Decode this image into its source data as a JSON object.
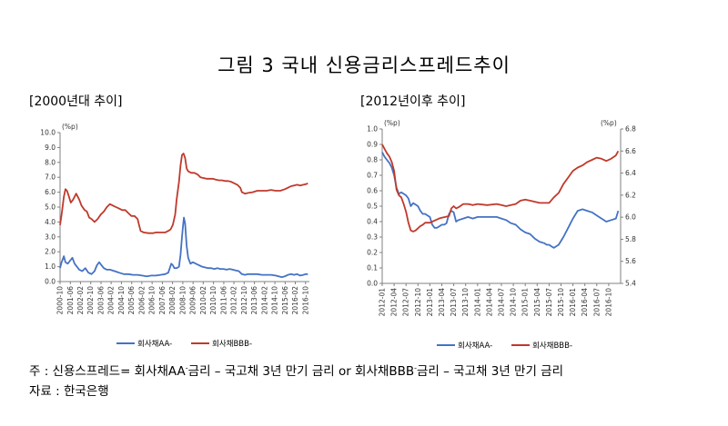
{
  "title": "그림 3 국내 신용금리스프레드추이",
  "colors": {
    "aa": "#4472c4",
    "bbb": "#c0392b",
    "axis": "#808080"
  },
  "footnote": {
    "prefix": "주 : 신용스프레드= 회사채AA",
    "sup1": "-",
    "mid": "금리 – 국고채 3년 만기 금리 or 회사채BBB",
    "sup2": "-",
    "suffix": "금리 – 국고채 3년 만기 금리"
  },
  "source": "자료 : 한국은행",
  "chart_data": [
    {
      "type": "line",
      "title": "[2000년대 추이]",
      "ylabel": "(%p)",
      "ylim": [
        0,
        10
      ],
      "yticks": [
        "0.0",
        "1.0",
        "2.0",
        "3.0",
        "4.0",
        "5.0",
        "6.0",
        "7.0",
        "8.0",
        "9.0",
        "10.0"
      ],
      "x_range": [
        2000.75,
        2017.0
      ],
      "xticks": [
        {
          "label": "2000-10",
          "x": 2000.75
        },
        {
          "label": "2001-06",
          "x": 2001.42
        },
        {
          "label": "2002-02",
          "x": 2002.08
        },
        {
          "label": "2002-10",
          "x": 2002.75
        },
        {
          "label": "2003-06",
          "x": 2003.42
        },
        {
          "label": "2004-02",
          "x": 2004.08
        },
        {
          "label": "2004-10",
          "x": 2004.75
        },
        {
          "label": "2005-06",
          "x": 2005.42
        },
        {
          "label": "2006-02",
          "x": 2006.08
        },
        {
          "label": "2006-10",
          "x": 2006.75
        },
        {
          "label": "2007-06",
          "x": 2007.42
        },
        {
          "label": "2008-02",
          "x": 2008.08
        },
        {
          "label": "2008-10",
          "x": 2008.75
        },
        {
          "label": "2009-06",
          "x": 2009.42
        },
        {
          "label": "2010-02",
          "x": 2010.08
        },
        {
          "label": "2010-10",
          "x": 2010.75
        },
        {
          "label": "2011-06",
          "x": 2011.42
        },
        {
          "label": "2012-02",
          "x": 2012.08
        },
        {
          "label": "2012-10",
          "x": 2012.75
        },
        {
          "label": "2013-06",
          "x": 2013.42
        },
        {
          "label": "2014-02",
          "x": 2014.08
        },
        {
          "label": "2014-10",
          "x": 2014.75
        },
        {
          "label": "2015-06",
          "x": 2015.42
        },
        {
          "label": "2016-02",
          "x": 2016.08
        },
        {
          "label": "2016-10",
          "x": 2016.75
        }
      ],
      "series": [
        {
          "name": "회사채AA-",
          "color_key": "aa",
          "x": [
            2000.75,
            2000.85,
            2001.0,
            2001.1,
            2001.25,
            2001.4,
            2001.55,
            2001.7,
            2001.85,
            2002.0,
            2002.2,
            2002.4,
            2002.6,
            2002.8,
            2003.0,
            2003.15,
            2003.3,
            2003.45,
            2003.6,
            2003.8,
            2004.0,
            2004.3,
            2004.6,
            2004.9,
            2005.2,
            2005.5,
            2005.8,
            2006.1,
            2006.4,
            2006.7,
            2007.0,
            2007.3,
            2007.6,
            2007.8,
            2007.9,
            2008.0,
            2008.1,
            2008.2,
            2008.35,
            2008.5,
            2008.6,
            2008.7,
            2008.75,
            2008.82,
            2008.9,
            2009.0,
            2009.1,
            2009.25,
            2009.4,
            2009.6,
            2009.8,
            2010.0,
            2010.2,
            2010.4,
            2010.6,
            2010.8,
            2011.0,
            2011.2,
            2011.4,
            2011.6,
            2011.8,
            2012.0,
            2012.2,
            2012.4,
            2012.6,
            2012.8,
            2013.0,
            2013.3,
            2013.6,
            2013.9,
            2014.2,
            2014.5,
            2014.8,
            2015.0,
            2015.2,
            2015.4,
            2015.6,
            2015.8,
            2016.0,
            2016.2,
            2016.4,
            2016.6,
            2016.75,
            2016.9
          ],
          "values": [
            0.9,
            1.3,
            1.7,
            1.3,
            1.2,
            1.4,
            1.6,
            1.2,
            1.0,
            0.8,
            0.7,
            0.9,
            0.6,
            0.5,
            0.7,
            1.1,
            1.3,
            1.1,
            0.9,
            0.8,
            0.8,
            0.7,
            0.6,
            0.5,
            0.5,
            0.45,
            0.45,
            0.4,
            0.35,
            0.4,
            0.4,
            0.45,
            0.5,
            0.6,
            0.9,
            1.2,
            1.1,
            0.9,
            0.9,
            1.0,
            1.8,
            3.0,
            3.6,
            4.3,
            3.9,
            2.4,
            1.6,
            1.2,
            1.3,
            1.2,
            1.1,
            1.0,
            0.95,
            0.9,
            0.9,
            0.85,
            0.9,
            0.85,
            0.85,
            0.8,
            0.85,
            0.8,
            0.75,
            0.7,
            0.5,
            0.45,
            0.5,
            0.5,
            0.5,
            0.45,
            0.45,
            0.45,
            0.4,
            0.35,
            0.3,
            0.35,
            0.45,
            0.5,
            0.45,
            0.5,
            0.4,
            0.45,
            0.5,
            0.5
          ]
        },
        {
          "name": "회사채BBB-",
          "color_key": "bbb",
          "x": [
            2000.75,
            2000.85,
            2001.0,
            2001.1,
            2001.2,
            2001.3,
            2001.45,
            2001.6,
            2001.8,
            2002.0,
            2002.15,
            2002.35,
            2002.5,
            2002.65,
            2002.8,
            2003.0,
            2003.2,
            2003.4,
            2003.6,
            2003.8,
            2004.0,
            2004.2,
            2004.4,
            2004.6,
            2004.8,
            2005.0,
            2005.2,
            2005.4,
            2005.6,
            2005.8,
            2005.9,
            2006.0,
            2006.2,
            2006.5,
            2006.8,
            2007.0,
            2007.3,
            2007.6,
            2007.8,
            2007.95,
            2008.1,
            2008.25,
            2008.35,
            2008.5,
            2008.6,
            2008.7,
            2008.8,
            2008.9,
            2009.0,
            2009.1,
            2009.3,
            2009.5,
            2009.7,
            2009.9,
            2010.1,
            2010.3,
            2010.5,
            2010.7,
            2010.9,
            2011.1,
            2011.3,
            2011.5,
            2011.7,
            2011.9,
            2012.1,
            2012.3,
            2012.5,
            2012.6,
            2012.8,
            2013.0,
            2013.3,
            2013.6,
            2013.9,
            2014.2,
            2014.5,
            2014.8,
            2015.1,
            2015.4,
            2015.6,
            2015.8,
            2016.0,
            2016.2,
            2016.4,
            2016.6,
            2016.8,
            2016.9
          ],
          "values": [
            3.8,
            4.5,
            5.7,
            6.2,
            6.1,
            5.8,
            5.3,
            5.5,
            5.9,
            5.5,
            5.1,
            4.8,
            4.7,
            4.3,
            4.2,
            4.0,
            4.2,
            4.5,
            4.7,
            5.0,
            5.2,
            5.1,
            5.0,
            4.9,
            4.8,
            4.8,
            4.6,
            4.4,
            4.4,
            4.2,
            3.8,
            3.4,
            3.3,
            3.25,
            3.25,
            3.3,
            3.3,
            3.3,
            3.4,
            3.5,
            3.8,
            4.5,
            5.5,
            6.7,
            7.8,
            8.5,
            8.6,
            8.3,
            7.6,
            7.4,
            7.3,
            7.3,
            7.2,
            7.0,
            6.95,
            6.9,
            6.9,
            6.9,
            6.85,
            6.8,
            6.8,
            6.75,
            6.75,
            6.7,
            6.6,
            6.5,
            6.3,
            6.0,
            5.9,
            5.95,
            6.0,
            6.1,
            6.1,
            6.1,
            6.15,
            6.1,
            6.1,
            6.2,
            6.3,
            6.4,
            6.45,
            6.5,
            6.45,
            6.5,
            6.55,
            6.6
          ]
        }
      ],
      "legend": [
        "회사채AA-",
        "회사채BBB-"
      ]
    },
    {
      "type": "line",
      "title": "[2012년이후 추이]",
      "ylabel": "(%p)",
      "ylabel_right": "(%p)",
      "ylim": [
        0,
        1.0
      ],
      "ylim_right": [
        5.4,
        6.8
      ],
      "yticks": [
        "0.0",
        "0.1",
        "0.2",
        "0.3",
        "0.4",
        "0.5",
        "0.6",
        "0.7",
        "0.8",
        "0.9",
        "1.0"
      ],
      "yticks_right": [
        "5.4",
        "5.6",
        "5.8",
        "6.0",
        "6.2",
        "6.4",
        "6.6",
        "6.8"
      ],
      "x_range": [
        2012.0,
        2017.0
      ],
      "xticks": [
        {
          "label": "2012-01",
          "x": 2012.0
        },
        {
          "label": "2012-04",
          "x": 2012.25
        },
        {
          "label": "2012-07",
          "x": 2012.5
        },
        {
          "label": "2012-10",
          "x": 2012.75
        },
        {
          "label": "2013-01",
          "x": 2013.0
        },
        {
          "label": "2013-04",
          "x": 2013.25
        },
        {
          "label": "2013-07",
          "x": 2013.5
        },
        {
          "label": "2013-10",
          "x": 2013.75
        },
        {
          "label": "2014-01",
          "x": 2014.0
        },
        {
          "label": "2014-04",
          "x": 2014.25
        },
        {
          "label": "2014-07",
          "x": 2014.5
        },
        {
          "label": "2014-10",
          "x": 2014.75
        },
        {
          "label": "2015-01",
          "x": 2015.0
        },
        {
          "label": "2015-04",
          "x": 2015.25
        },
        {
          "label": "2015-07",
          "x": 2015.5
        },
        {
          "label": "2015-10",
          "x": 2015.75
        },
        {
          "label": "2016-01",
          "x": 2016.0
        },
        {
          "label": "2016-04",
          "x": 2016.25
        },
        {
          "label": "2016-07",
          "x": 2016.5
        },
        {
          "label": "2016-10",
          "x": 2016.75
        }
      ],
      "series": [
        {
          "name": "회사채AA-",
          "color_key": "aa",
          "axis": "left",
          "x": [
            2012.0,
            2012.05,
            2012.1,
            2012.15,
            2012.2,
            2012.25,
            2012.3,
            2012.35,
            2012.4,
            2012.45,
            2012.5,
            2012.55,
            2012.6,
            2012.65,
            2012.7,
            2012.75,
            2012.8,
            2012.85,
            2012.9,
            2012.95,
            2013.0,
            2013.05,
            2013.1,
            2013.15,
            2013.2,
            2013.25,
            2013.3,
            2013.35,
            2013.4,
            2013.45,
            2013.5,
            2013.55,
            2013.6,
            2013.7,
            2013.8,
            2013.9,
            2014.0,
            2014.2,
            2014.4,
            2014.5,
            2014.6,
            2014.7,
            2014.8,
            2014.9,
            2015.0,
            2015.1,
            2015.2,
            2015.3,
            2015.4,
            2015.45,
            2015.5,
            2015.55,
            2015.6,
            2015.7,
            2015.8,
            2015.9,
            2016.0,
            2016.1,
            2016.2,
            2016.3,
            2016.4,
            2016.5,
            2016.6,
            2016.7,
            2016.8,
            2016.9,
            2016.95
          ],
          "values": [
            0.85,
            0.82,
            0.8,
            0.78,
            0.75,
            0.7,
            0.62,
            0.58,
            0.59,
            0.58,
            0.57,
            0.55,
            0.5,
            0.52,
            0.51,
            0.5,
            0.47,
            0.45,
            0.45,
            0.44,
            0.43,
            0.38,
            0.36,
            0.36,
            0.37,
            0.38,
            0.38,
            0.39,
            0.45,
            0.47,
            0.46,
            0.4,
            0.41,
            0.42,
            0.43,
            0.42,
            0.43,
            0.43,
            0.43,
            0.42,
            0.41,
            0.39,
            0.38,
            0.35,
            0.33,
            0.32,
            0.29,
            0.27,
            0.26,
            0.25,
            0.25,
            0.24,
            0.23,
            0.25,
            0.3,
            0.36,
            0.42,
            0.47,
            0.48,
            0.47,
            0.46,
            0.44,
            0.42,
            0.4,
            0.41,
            0.42,
            0.47
          ]
        },
        {
          "name": "회사채BBB-",
          "color_key": "bbb",
          "axis": "right",
          "x": [
            2012.0,
            2012.05,
            2012.1,
            2012.15,
            2012.2,
            2012.25,
            2012.3,
            2012.35,
            2012.4,
            2012.45,
            2012.5,
            2012.55,
            2012.6,
            2012.65,
            2012.7,
            2012.75,
            2012.8,
            2012.85,
            2012.9,
            2012.95,
            2013.0,
            2013.1,
            2013.2,
            2013.3,
            2013.4,
            2013.45,
            2013.5,
            2013.55,
            2013.6,
            2013.7,
            2013.8,
            2013.9,
            2014.0,
            2014.2,
            2014.4,
            2014.5,
            2014.6,
            2014.7,
            2014.8,
            2014.9,
            2015.0,
            2015.1,
            2015.2,
            2015.3,
            2015.4,
            2015.5,
            2015.6,
            2015.7,
            2015.8,
            2015.9,
            2016.0,
            2016.1,
            2016.2,
            2016.3,
            2016.4,
            2016.5,
            2016.6,
            2016.7,
            2016.8,
            2016.9,
            2016.95
          ],
          "values": [
            6.66,
            6.62,
            6.58,
            6.55,
            6.5,
            6.42,
            6.25,
            6.2,
            6.18,
            6.12,
            6.05,
            5.95,
            5.88,
            5.87,
            5.88,
            5.9,
            5.92,
            5.93,
            5.95,
            5.95,
            5.95,
            5.97,
            5.99,
            6.0,
            6.01,
            6.08,
            6.1,
            6.08,
            6.09,
            6.12,
            6.12,
            6.11,
            6.12,
            6.11,
            6.12,
            6.11,
            6.1,
            6.11,
            6.12,
            6.15,
            6.16,
            6.15,
            6.14,
            6.13,
            6.13,
            6.13,
            6.18,
            6.22,
            6.3,
            6.36,
            6.42,
            6.45,
            6.47,
            6.5,
            6.52,
            6.54,
            6.53,
            6.51,
            6.53,
            6.56,
            6.6
          ]
        }
      ],
      "legend": [
        "회사채AA-",
        "회사채BBB-"
      ]
    }
  ]
}
